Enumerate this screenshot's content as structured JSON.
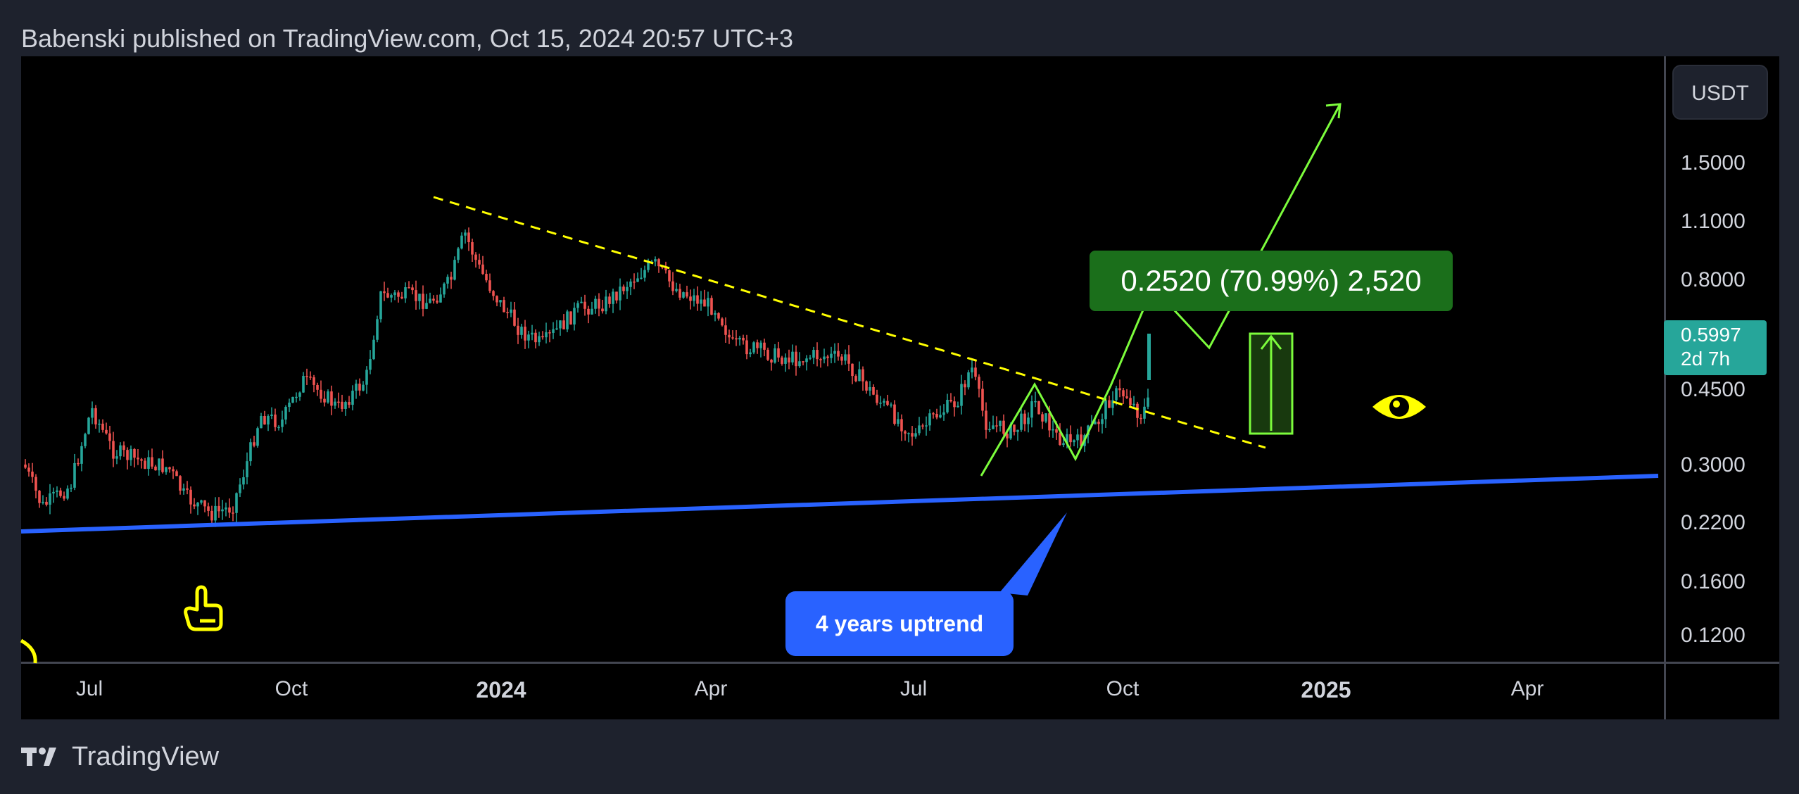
{
  "header": {
    "text": "Babenski published on TradingView.com, Oct 15, 2024 20:57 UTC+3"
  },
  "price_scale": {
    "currency": "USDT",
    "ticks": [
      "1.5000",
      "1.1000",
      "0.8000",
      "0.4500",
      "0.3000",
      "0.2200",
      "0.1600",
      "0.1200"
    ],
    "last_price": "0.5997",
    "countdown": "2d 7h",
    "last_price_color": "#26a69a"
  },
  "time_axis": {
    "labels": [
      "Jul",
      "Oct",
      "2024",
      "Apr",
      "Jul",
      "Oct",
      "2025",
      "Apr"
    ]
  },
  "annotations": {
    "measure_label": "0.2520 (70.99%) 2,520",
    "callout": "4 years uptrend"
  },
  "footer": {
    "brand": "TradingView"
  },
  "colors": {
    "up_candle": "#26a69a",
    "down_candle": "#ef5350",
    "trendline": "#ffff00",
    "uptrend_line": "#2962ff",
    "projection": "#7cfc3c",
    "measure_fill": "#1b6f1b"
  },
  "icons": [
    "pointing-hand-icon",
    "eye-icon",
    "tradingview-logo-icon"
  ]
}
